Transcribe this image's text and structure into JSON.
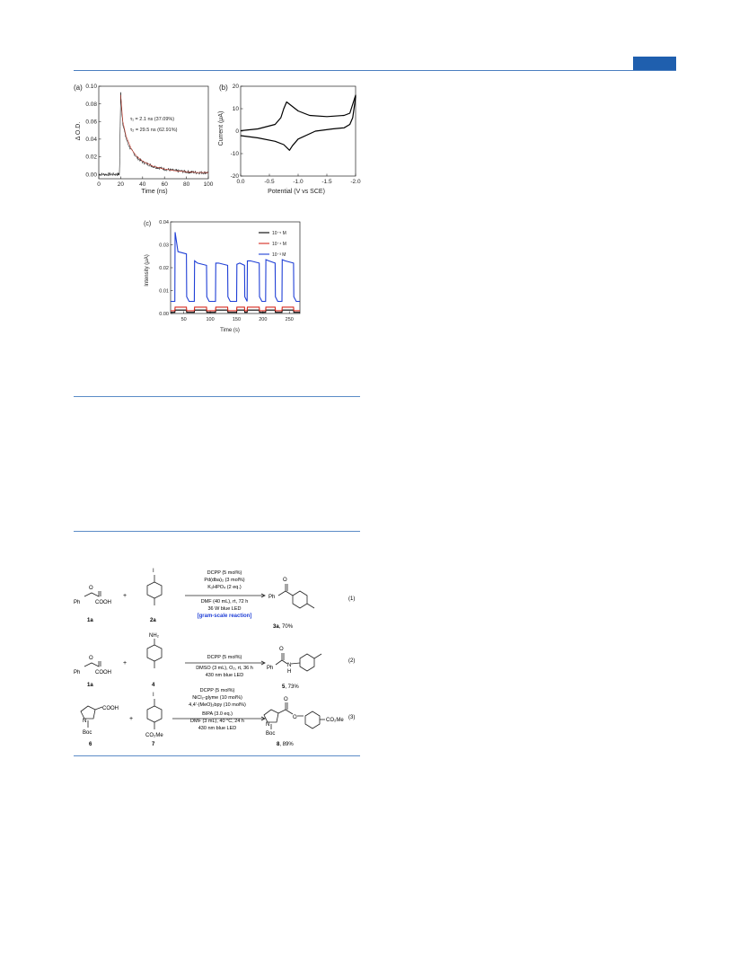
{
  "page": {
    "accent_color": "#1f5fae",
    "rule_color": "#5b8cc7"
  },
  "panel_a": {
    "label": "(a)",
    "xlabel": "Time (ns)",
    "ylabel": "Δ O.D.",
    "annotation1": "τ₁ = 2.1 ns (37.09%)",
    "annotation2": "τ₂ = 29.5 ns (62.91%)"
  },
  "panel_b": {
    "label": "(b)",
    "xlabel": "Potential (V vs SCE)",
    "ylabel": "Current (μA)"
  },
  "panel_c": {
    "label": "(c)",
    "xlabel": "Time (s)",
    "ylabel": "Intensity (μA)"
  },
  "chart_data": [
    {
      "type": "line",
      "panel": "(a)",
      "xlabel": "Time (ns)",
      "ylabel": "Δ O.D.",
      "xlim": [
        0,
        100
      ],
      "ylim": [
        -0.005,
        0.1
      ],
      "xticks": [
        "0",
        "20",
        "40",
        "60",
        "80",
        "100"
      ],
      "yticks": [
        "0.00",
        "0.02",
        "0.04",
        "0.06",
        "0.08",
        "0.10"
      ],
      "series": [
        {
          "x": [
            0,
            5,
            10,
            15,
            19,
            20,
            21,
            22,
            24,
            26,
            28,
            30,
            35,
            40,
            50,
            60,
            70,
            80,
            90,
            100
          ],
          "y": [
            0.0,
            0.0,
            0.0,
            0.0,
            0.0,
            0.092,
            0.07,
            0.058,
            0.045,
            0.037,
            0.031,
            0.027,
            0.019,
            0.014,
            0.009,
            0.006,
            0.004,
            0.003,
            0.002,
            0.002
          ],
          "color": "#000000"
        },
        {
          "x": [
            20,
            22,
            25,
            30,
            35,
            40,
            50,
            60,
            70,
            80,
            90,
            100
          ],
          "y": [
            0.09,
            0.06,
            0.043,
            0.028,
            0.02,
            0.015,
            0.009,
            0.006,
            0.004,
            0.003,
            0.002,
            0.002
          ],
          "color": "#c0392b"
        }
      ]
    },
    {
      "type": "line",
      "panel": "(b)",
      "xlabel": "Potential (V vs SCE)",
      "ylabel": "Current (μA)",
      "xlim": [
        0.0,
        -2.0
      ],
      "ylim": [
        -20,
        20
      ],
      "xticks": [
        "0.0",
        "-0.5",
        "-1.0",
        "-1.5",
        "-2.0"
      ],
      "yticks": [
        "-20",
        "-10",
        "0",
        "10",
        "20"
      ],
      "series": [
        {
          "x": [
            0.0,
            -0.3,
            -0.6,
            -0.75,
            -0.85,
            -0.9,
            -1.0,
            -1.3,
            -1.6,
            -1.8,
            -1.9,
            -1.95,
            -2.0,
            -2.0,
            -1.95,
            -1.9,
            -1.8,
            -1.5,
            -1.2,
            -1.0,
            -0.9,
            -0.8,
            -0.75,
            -0.7,
            -0.6,
            -0.3,
            0.0
          ],
          "y": [
            -2.0,
            -3.0,
            -4.5,
            -6.0,
            -8.5,
            -6.5,
            -3.5,
            0.0,
            1.0,
            1.5,
            3.0,
            6.0,
            15.0,
            16.0,
            12.0,
            8.0,
            7.0,
            6.5,
            7.0,
            9.0,
            11.0,
            13.0,
            10.0,
            6.0,
            3.0,
            1.0,
            0.2
          ],
          "color": "#000000"
        }
      ]
    },
    {
      "type": "line",
      "panel": "(c)",
      "xlabel": "Time (s)",
      "ylabel": "Intensity (μA)",
      "xlim": [
        25,
        270
      ],
      "ylim": [
        0.0,
        0.04
      ],
      "xticks": [
        "50",
        "100",
        "150",
        "200",
        "250"
      ],
      "yticks": [
        "0.00",
        "0.01",
        "0.02",
        "0.03",
        "0.04"
      ],
      "legend_position": "top-right",
      "series": [
        {
          "name": "10⁻⁵ M",
          "color": "#000000",
          "on_periods": [
            [
              33,
              55
            ],
            [
              70,
              93
            ],
            [
              110,
              133
            ],
            [
              150,
              165
            ],
            [
              170,
              193
            ],
            [
              205,
              223
            ],
            [
              236,
              258
            ]
          ],
          "on_level": 0.0015,
          "off_level": 0.0005
        },
        {
          "name": "10⁻⁴ M",
          "color": "#d62a1f",
          "on_periods": [
            [
              33,
              55
            ],
            [
              70,
              93
            ],
            [
              110,
              133
            ],
            [
              150,
              165
            ],
            [
              170,
              193
            ],
            [
              205,
              223
            ],
            [
              236,
              258
            ]
          ],
          "on_level": 0.0028,
          "off_level": 0.0012
        },
        {
          "name": "10⁻³ M",
          "color": "#1f3fd6",
          "on_periods": [
            [
              33,
              55
            ],
            [
              70,
              93
            ],
            [
              110,
              133
            ],
            [
              150,
              165
            ],
            [
              170,
              193
            ],
            [
              205,
              223
            ],
            [
              236,
              258
            ]
          ],
          "peaks": [
            0.0355,
            0.023,
            0.022,
            0.0215,
            0.023,
            0.0235,
            0.0235
          ],
          "plateaus": [
            0.026,
            0.021,
            0.021,
            0.021,
            0.022,
            0.022,
            0.022
          ],
          "off_level": 0.0053
        }
      ]
    }
  ],
  "scheme": {
    "rows": [
      {
        "acid_label": "COOH",
        "acid_sub": "Ph",
        "acid_id": "1a",
        "plus": "+",
        "partner_id": "2a",
        "conditions": [
          "DCPP (5 mol%)",
          "Pd(dba)₂ (3 mol%)",
          "K₂HPO₄ (2 eq.)",
          "DMF (40 mL), rt, 72 h",
          "36 W blue LED"
        ],
        "highlight": "[gram-scale reaction]",
        "product_sub": "Ph",
        "product_id": "3a",
        "product_yield": ", 70%",
        "eq_number": "(1)"
      },
      {
        "acid_label": "COOH",
        "acid_sub": "Ph",
        "acid_id": "1a",
        "plus": "+",
        "partner_top": "NH₂",
        "partner_id": "4",
        "conditions": [
          "DCPP (5 mol%)",
          "DMSO (3 mL), O₂, rt, 36 h",
          "430 nm blue LED"
        ],
        "product_sub": "Ph",
        "product_n": "N",
        "product_h": "H",
        "product_id": "5",
        "product_yield": ", 73%",
        "eq_number": "(2)"
      },
      {
        "acid_label": "COOH",
        "acid_n": "N",
        "acid_boc": "Boc",
        "acid_id": "6",
        "plus": "+",
        "partner_bottom": "CO₂Me",
        "partner_id": "7",
        "conditions": [
          "DCPP (5 mol%)",
          "NiCl₂·glyme (10 mol%)",
          "4,4'-(MeO)₂bpy (10 mol%)",
          "BIPA (3.0 eq.)",
          "DMF (3 mL), 40 °C, 24 h",
          "430 nm blue LED"
        ],
        "product_n": "N",
        "product_boc": "Boc",
        "product_o": "O",
        "product_ester": "CO₂Me",
        "product_id": "8",
        "product_yield": ", 89%",
        "eq_number": "(3)"
      }
    ],
    "iodo": "I",
    "oxo": "O",
    "highlight_color": "#1f3fd6"
  }
}
